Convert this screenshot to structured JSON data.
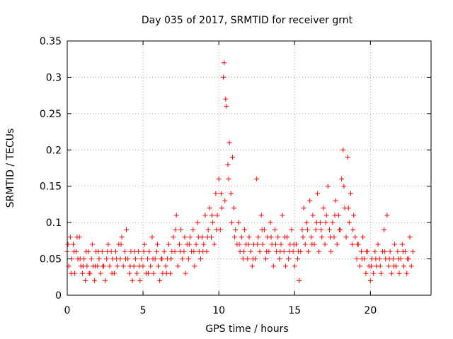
{
  "chart_data": {
    "type": "scatter",
    "title": "Day 035 of 2017, SRMTID for receiver grnt",
    "xlabel": "GPS time / hours",
    "ylabel": "SRMTID / TECUs",
    "xlim": [
      0,
      24
    ],
    "ylim": [
      0,
      0.35
    ],
    "x_ticks": [
      0,
      5,
      10,
      15,
      20
    ],
    "x_tick_labels": [
      "0",
      "5",
      "10",
      "15",
      "20"
    ],
    "y_ticks": [
      0,
      0.05,
      0.1,
      0.15,
      0.2,
      0.25,
      0.3,
      0.35
    ],
    "y_tick_labels": [
      "0",
      "0.05",
      "0.1",
      "0.15",
      "0.2",
      "0.25",
      "0.3",
      "0.35"
    ],
    "grid": true,
    "marker": "+",
    "color": "#ff0000",
    "series": [
      {
        "name": "SRMTID",
        "points": [
          [
            0.0,
            0.06
          ],
          [
            0.1,
            0.04
          ],
          [
            0.2,
            0.08
          ],
          [
            0.3,
            0.05
          ],
          [
            0.4,
            0.07
          ],
          [
            0.5,
            0.03
          ],
          [
            0.6,
            0.06
          ],
          [
            0.7,
            0.05
          ],
          [
            0.8,
            0.08
          ],
          [
            0.9,
            0.04
          ],
          [
            1.0,
            0.03
          ],
          [
            1.1,
            0.05
          ],
          [
            1.2,
            0.02
          ],
          [
            1.3,
            0.04
          ],
          [
            1.4,
            0.06
          ],
          [
            1.5,
            0.03
          ],
          [
            1.6,
            0.05
          ],
          [
            1.7,
            0.04
          ],
          [
            1.8,
            0.02
          ],
          [
            1.9,
            0.06
          ],
          [
            2.0,
            0.04
          ],
          [
            2.1,
            0.05
          ],
          [
            2.2,
            0.03
          ],
          [
            2.3,
            0.06
          ],
          [
            2.4,
            0.04
          ],
          [
            2.5,
            0.02
          ],
          [
            2.6,
            0.05
          ],
          [
            2.7,
            0.07
          ],
          [
            2.8,
            0.04
          ],
          [
            2.9,
            0.06
          ],
          [
            3.0,
            0.05
          ],
          [
            3.1,
            0.03
          ],
          [
            3.2,
            0.06
          ],
          [
            3.3,
            0.04
          ],
          [
            3.4,
            0.07
          ],
          [
            3.5,
            0.05
          ],
          [
            3.6,
            0.08
          ],
          [
            3.7,
            0.04
          ],
          [
            3.8,
            0.06
          ],
          [
            3.9,
            0.09
          ],
          [
            4.0,
            0.05
          ],
          [
            4.1,
            0.03
          ],
          [
            4.2,
            0.06
          ],
          [
            4.3,
            0.02
          ],
          [
            4.4,
            0.04
          ],
          [
            4.5,
            0.05
          ],
          [
            4.6,
            0.03
          ],
          [
            4.7,
            0.06
          ],
          [
            4.8,
            0.02
          ],
          [
            4.9,
            0.05
          ],
          [
            5.0,
            0.04
          ],
          [
            5.1,
            0.07
          ],
          [
            5.2,
            0.03
          ],
          [
            5.3,
            0.05
          ],
          [
            5.4,
            0.06
          ],
          [
            5.5,
            0.04
          ],
          [
            5.6,
            0.08
          ],
          [
            5.7,
            0.03
          ],
          [
            5.8,
            0.05
          ],
          [
            5.9,
            0.06
          ],
          [
            6.0,
            0.04
          ],
          [
            6.1,
            0.02
          ],
          [
            6.2,
            0.05
          ],
          [
            6.3,
            0.03
          ],
          [
            6.4,
            0.06
          ],
          [
            6.5,
            0.04
          ],
          [
            6.6,
            0.05
          ],
          [
            6.7,
            0.07
          ],
          [
            6.8,
            0.03
          ],
          [
            6.9,
            0.06
          ],
          [
            7.0,
            0.08
          ],
          [
            7.1,
            0.06
          ],
          [
            7.2,
            0.11
          ],
          [
            7.3,
            0.04
          ],
          [
            7.4,
            0.07
          ],
          [
            7.5,
            0.09
          ],
          [
            7.6,
            0.05
          ],
          [
            7.7,
            0.06
          ],
          [
            7.8,
            0.03
          ],
          [
            7.9,
            0.07
          ],
          [
            8.0,
            0.05
          ],
          [
            8.1,
            0.08
          ],
          [
            8.2,
            0.06
          ],
          [
            8.3,
            0.09
          ],
          [
            8.4,
            0.04
          ],
          [
            8.5,
            0.07
          ],
          [
            8.6,
            0.1
          ],
          [
            8.7,
            0.06
          ],
          [
            8.8,
            0.05
          ],
          [
            8.9,
            0.08
          ],
          [
            9.0,
            0.07
          ],
          [
            9.1,
            0.11
          ],
          [
            9.2,
            0.06
          ],
          [
            9.3,
            0.09
          ],
          [
            9.4,
            0.12
          ],
          [
            9.5,
            0.08
          ],
          [
            9.6,
            0.1
          ],
          [
            9.7,
            0.07
          ],
          [
            9.8,
            0.14
          ],
          [
            9.9,
            0.11
          ],
          [
            10.0,
            0.16
          ],
          [
            10.1,
            0.09
          ],
          [
            10.2,
            0.12
          ],
          [
            10.3,
            0.3
          ],
          [
            10.35,
            0.32
          ],
          [
            10.4,
            0.13
          ],
          [
            10.5,
            0.26
          ],
          [
            10.6,
            0.18
          ],
          [
            10.7,
            0.21
          ],
          [
            10.8,
            0.14
          ],
          [
            10.9,
            0.19
          ],
          [
            11.0,
            0.12
          ],
          [
            11.1,
            0.09
          ],
          [
            11.2,
            0.07
          ],
          [
            11.3,
            0.1
          ],
          [
            11.4,
            0.06
          ],
          [
            11.5,
            0.08
          ],
          [
            11.6,
            0.05
          ],
          [
            11.7,
            0.09
          ],
          [
            11.8,
            0.07
          ],
          [
            11.9,
            0.05
          ],
          [
            12.0,
            0.08
          ],
          [
            12.1,
            0.06
          ],
          [
            12.2,
            0.04
          ],
          [
            12.3,
            0.07
          ],
          [
            12.4,
            0.05
          ],
          [
            12.5,
            0.16
          ],
          [
            12.6,
            0.08
          ],
          [
            12.7,
            0.06
          ],
          [
            12.8,
            0.11
          ],
          [
            12.9,
            0.07
          ],
          [
            13.0,
            0.09
          ],
          [
            13.1,
            0.05
          ],
          [
            13.2,
            0.08
          ],
          [
            13.3,
            0.06
          ],
          [
            13.4,
            0.1
          ],
          [
            13.5,
            0.07
          ],
          [
            13.6,
            0.04
          ],
          [
            13.7,
            0.09
          ],
          [
            13.8,
            0.06
          ],
          [
            13.9,
            0.08
          ],
          [
            14.0,
            0.05
          ],
          [
            14.1,
            0.07
          ],
          [
            14.2,
            0.11
          ],
          [
            14.3,
            0.06
          ],
          [
            14.4,
            0.04
          ],
          [
            14.5,
            0.08
          ],
          [
            14.6,
            0.05
          ],
          [
            14.7,
            0.07
          ],
          [
            14.8,
            0.09
          ],
          [
            14.9,
            0.06
          ],
          [
            15.0,
            0.04
          ],
          [
            15.1,
            0.07
          ],
          [
            15.2,
            0.05
          ],
          [
            15.3,
            0.02
          ],
          [
            15.4,
            0.06
          ],
          [
            15.5,
            0.09
          ],
          [
            15.6,
            0.12
          ],
          [
            15.7,
            0.07
          ],
          [
            15.8,
            0.1
          ],
          [
            15.9,
            0.06
          ],
          [
            16.0,
            0.13
          ],
          [
            16.1,
            0.08
          ],
          [
            16.2,
            0.11
          ],
          [
            16.3,
            0.07
          ],
          [
            16.4,
            0.09
          ],
          [
            16.5,
            0.14
          ],
          [
            16.6,
            0.06
          ],
          [
            16.7,
            0.1
          ],
          [
            16.8,
            0.08
          ],
          [
            16.9,
            0.12
          ],
          [
            17.0,
            0.07
          ],
          [
            17.1,
            0.11
          ],
          [
            17.2,
            0.15
          ],
          [
            17.3,
            0.09
          ],
          [
            17.4,
            0.06
          ],
          [
            17.5,
            0.1
          ],
          [
            17.6,
            0.08
          ],
          [
            17.7,
            0.13
          ],
          [
            17.8,
            0.07
          ],
          [
            17.9,
            0.11
          ],
          [
            18.0,
            0.09
          ],
          [
            18.1,
            0.16
          ],
          [
            18.2,
            0.2
          ],
          [
            18.3,
            0.12
          ],
          [
            18.4,
            0.08
          ],
          [
            18.5,
            0.19
          ],
          [
            18.6,
            0.1
          ],
          [
            18.7,
            0.14
          ],
          [
            18.8,
            0.07
          ],
          [
            18.9,
            0.11
          ],
          [
            19.0,
            0.08
          ],
          [
            19.1,
            0.05
          ],
          [
            19.2,
            0.07
          ],
          [
            19.3,
            0.04
          ],
          [
            19.4,
            0.06
          ],
          [
            19.5,
            0.08
          ],
          [
            19.6,
            0.05
          ],
          [
            19.7,
            0.03
          ],
          [
            19.8,
            0.06
          ],
          [
            19.9,
            0.04
          ],
          [
            20.0,
            0.02
          ],
          [
            20.1,
            0.05
          ],
          [
            20.2,
            0.03
          ],
          [
            20.3,
            0.06
          ],
          [
            20.4,
            0.04
          ],
          [
            20.5,
            0.07
          ],
          [
            20.6,
            0.05
          ],
          [
            20.7,
            0.03
          ],
          [
            20.8,
            0.06
          ],
          [
            20.9,
            0.09
          ],
          [
            21.0,
            0.05
          ],
          [
            21.1,
            0.11
          ],
          [
            21.2,
            0.04
          ],
          [
            21.3,
            0.06
          ],
          [
            21.4,
            0.03
          ],
          [
            21.5,
            0.05
          ],
          [
            21.6,
            0.07
          ],
          [
            21.7,
            0.04
          ],
          [
            21.8,
            0.06
          ],
          [
            21.9,
            0.03
          ],
          [
            22.0,
            0.05
          ],
          [
            22.1,
            0.07
          ],
          [
            22.2,
            0.04
          ],
          [
            22.3,
            0.06
          ],
          [
            22.4,
            0.03
          ],
          [
            22.5,
            0.05
          ],
          [
            22.6,
            0.08
          ],
          [
            22.7,
            0.04
          ],
          [
            22.8,
            0.06
          ],
          [
            0.05,
            0.07
          ],
          [
            0.25,
            0.03
          ],
          [
            0.45,
            0.06
          ],
          [
            0.65,
            0.08
          ],
          [
            0.85,
            0.05
          ],
          [
            1.05,
            0.04
          ],
          [
            1.25,
            0.06
          ],
          [
            1.45,
            0.03
          ],
          [
            1.65,
            0.07
          ],
          [
            1.85,
            0.04
          ],
          [
            2.05,
            0.06
          ],
          [
            2.35,
            0.04
          ],
          [
            2.65,
            0.06
          ],
          [
            2.95,
            0.03
          ],
          [
            3.25,
            0.05
          ],
          [
            3.55,
            0.07
          ],
          [
            3.85,
            0.05
          ],
          [
            4.15,
            0.04
          ],
          [
            4.45,
            0.06
          ],
          [
            4.75,
            0.04
          ],
          [
            5.05,
            0.06
          ],
          [
            5.35,
            0.03
          ],
          [
            5.65,
            0.05
          ],
          [
            5.95,
            0.07
          ],
          [
            6.25,
            0.05
          ],
          [
            6.55,
            0.03
          ],
          [
            6.85,
            0.05
          ],
          [
            7.15,
            0.09
          ],
          [
            7.45,
            0.06
          ],
          [
            7.75,
            0.08
          ],
          [
            8.05,
            0.07
          ],
          [
            8.35,
            0.06
          ],
          [
            8.65,
            0.08
          ],
          [
            8.95,
            0.06
          ],
          [
            9.25,
            0.08
          ],
          [
            9.55,
            0.11
          ],
          [
            9.85,
            0.09
          ],
          [
            10.15,
            0.14
          ],
          [
            10.45,
            0.27
          ],
          [
            10.65,
            0.16
          ],
          [
            10.85,
            0.1
          ],
          [
            11.05,
            0.08
          ],
          [
            11.35,
            0.07
          ],
          [
            11.65,
            0.06
          ],
          [
            11.95,
            0.07
          ],
          [
            12.25,
            0.05
          ],
          [
            12.55,
            0.07
          ],
          [
            12.85,
            0.09
          ],
          [
            13.15,
            0.06
          ],
          [
            13.45,
            0.08
          ],
          [
            13.75,
            0.07
          ],
          [
            14.05,
            0.06
          ],
          [
            14.35,
            0.08
          ],
          [
            14.65,
            0.06
          ],
          [
            14.95,
            0.07
          ],
          [
            15.25,
            0.06
          ],
          [
            15.55,
            0.08
          ],
          [
            15.85,
            0.09
          ],
          [
            16.15,
            0.07
          ],
          [
            16.45,
            0.1
          ],
          [
            16.75,
            0.09
          ],
          [
            17.05,
            0.1
          ],
          [
            17.35,
            0.08
          ],
          [
            17.65,
            0.11
          ],
          [
            17.95,
            0.09
          ],
          [
            18.25,
            0.15
          ],
          [
            18.55,
            0.12
          ],
          [
            18.85,
            0.09
          ],
          [
            19.15,
            0.07
          ],
          [
            19.45,
            0.05
          ],
          [
            19.75,
            0.06
          ],
          [
            20.05,
            0.04
          ],
          [
            20.35,
            0.05
          ],
          [
            20.65,
            0.04
          ],
          [
            20.95,
            0.06
          ],
          [
            21.25,
            0.05
          ],
          [
            21.55,
            0.04
          ],
          [
            21.85,
            0.05
          ],
          [
            22.15,
            0.06
          ],
          [
            22.45,
            0.05
          ]
        ]
      }
    ]
  }
}
